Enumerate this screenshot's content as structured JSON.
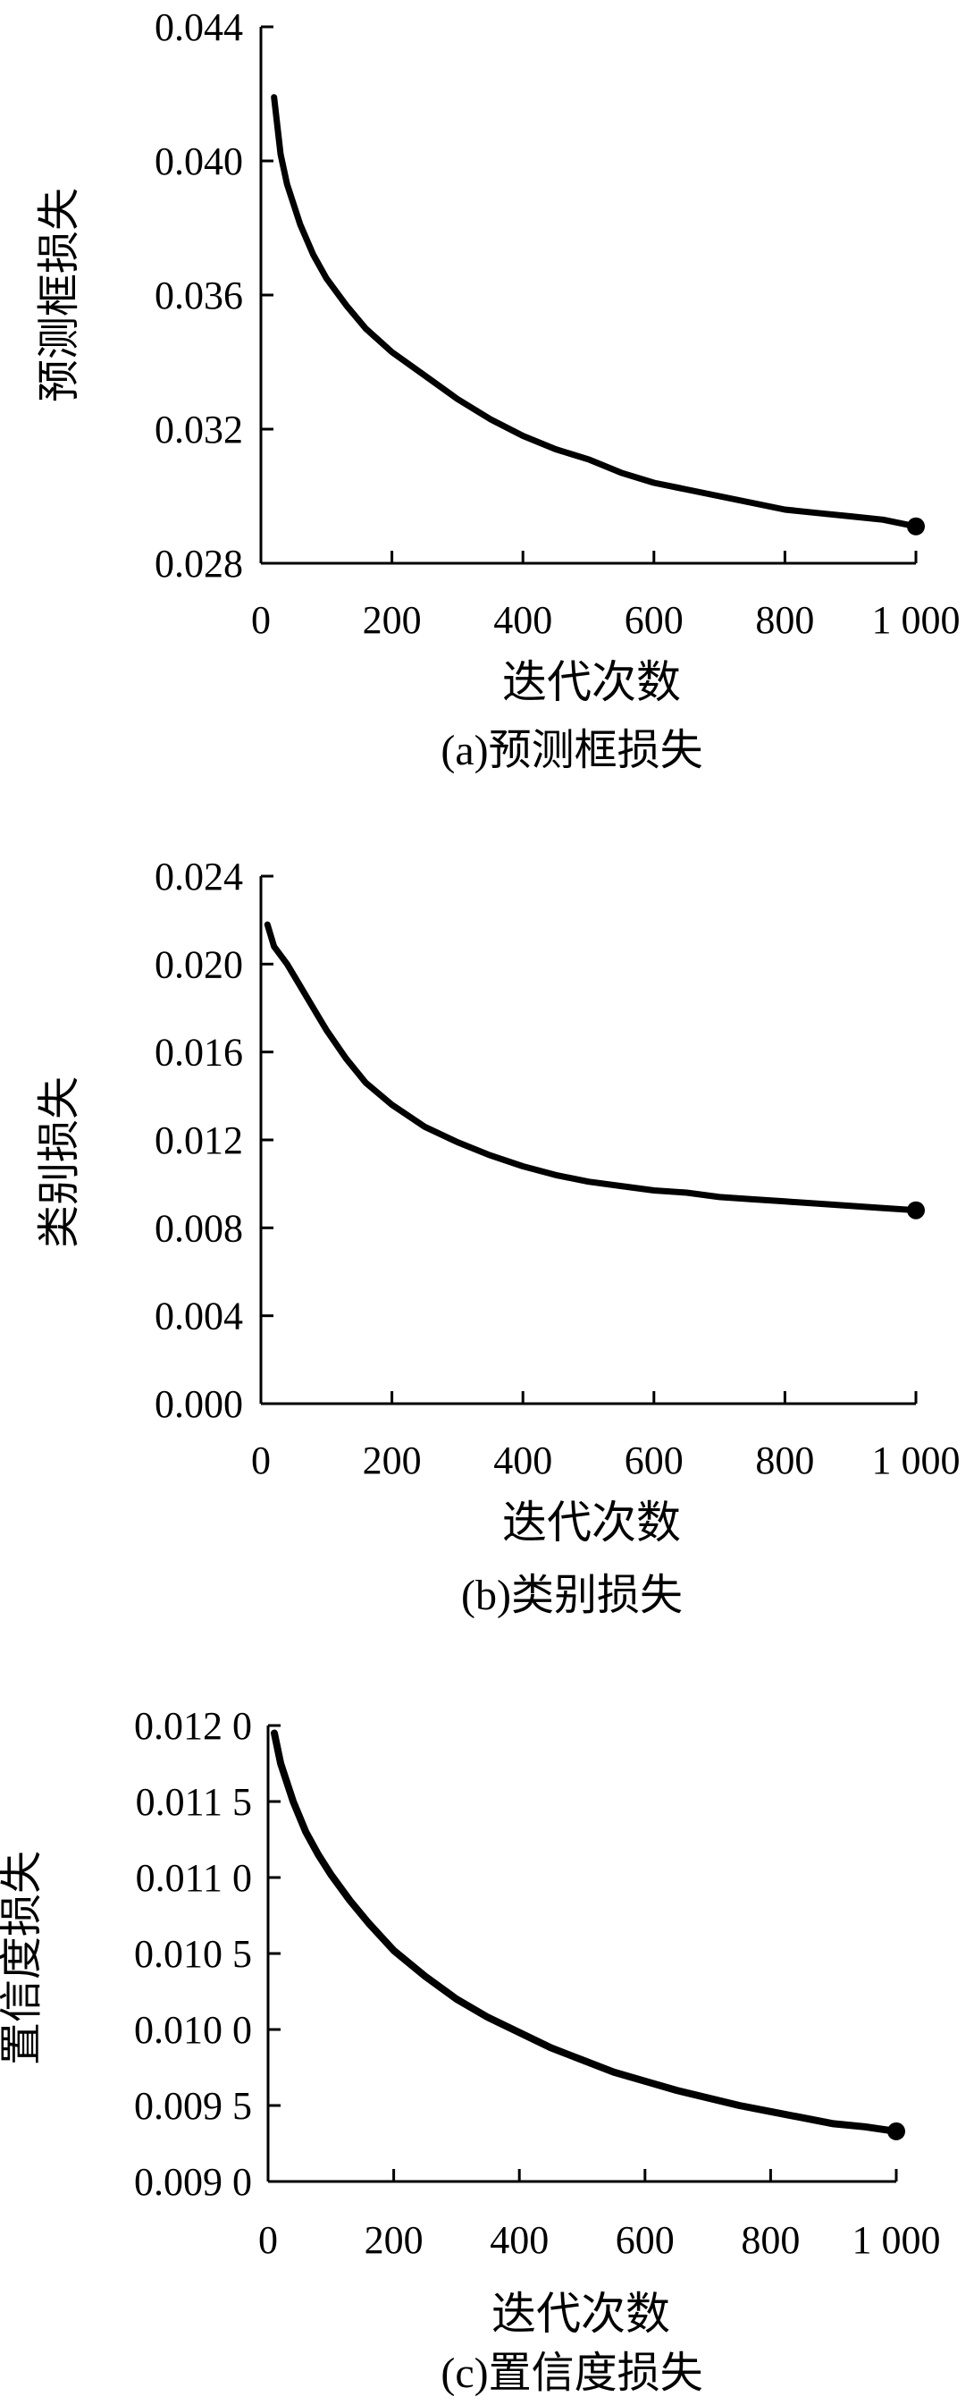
{
  "chart_data": [
    {
      "type": "line",
      "title": "",
      "caption": "(a)预测框损失",
      "xlabel": "迭代次数",
      "ylabel": "预测框损失",
      "xlim": [
        0,
        1000
      ],
      "ylim": [
        0.028,
        0.044
      ],
      "x_ticks": [
        "0",
        "200",
        "400",
        "600",
        "800",
        "1 000"
      ],
      "y_ticks": [
        "0.028",
        "0.032",
        "0.036",
        "0.040",
        "0.044"
      ],
      "grid": false,
      "series": [
        {
          "x": [
            20,
            30,
            40,
            60,
            80,
            100,
            130,
            160,
            200,
            250,
            300,
            350,
            400,
            450,
            500,
            550,
            600,
            650,
            700,
            750,
            800,
            850,
            900,
            950,
            1000
          ],
          "values": [
            0.0419,
            0.0402,
            0.0393,
            0.0381,
            0.0372,
            0.0365,
            0.0357,
            0.035,
            0.0343,
            0.0336,
            0.0329,
            0.0323,
            0.0318,
            0.0314,
            0.0311,
            0.0307,
            0.0304,
            0.0302,
            0.03,
            0.0298,
            0.0296,
            0.0295,
            0.0294,
            0.0293,
            0.0291
          ]
        }
      ]
    },
    {
      "type": "line",
      "title": "",
      "caption": "(b)类别损失",
      "xlabel": "迭代次数",
      "ylabel": "类别损失",
      "xlim": [
        0,
        1000
      ],
      "ylim": [
        0.0,
        0.024
      ],
      "x_ticks": [
        "0",
        "200",
        "400",
        "600",
        "800",
        "1 000"
      ],
      "y_ticks": [
        "0.000",
        "0.004",
        "0.008",
        "0.012",
        "0.016",
        "0.020",
        "0.024"
      ],
      "grid": false,
      "series": [
        {
          "x": [
            10,
            20,
            40,
            60,
            80,
            100,
            130,
            160,
            200,
            250,
            300,
            350,
            400,
            450,
            500,
            550,
            600,
            650,
            700,
            750,
            800,
            850,
            900,
            950,
            1000
          ],
          "values": [
            0.0218,
            0.0208,
            0.02,
            0.019,
            0.018,
            0.017,
            0.0157,
            0.0146,
            0.0136,
            0.0126,
            0.0119,
            0.0113,
            0.0108,
            0.0104,
            0.0101,
            0.0099,
            0.0097,
            0.0096,
            0.0094,
            0.0093,
            0.0092,
            0.0091,
            0.009,
            0.0089,
            0.0088
          ]
        }
      ]
    },
    {
      "type": "line",
      "title": "",
      "caption": "(c)置信度损失",
      "xlabel": "迭代次数",
      "ylabel": "置信度损失",
      "xlim": [
        0,
        1000
      ],
      "ylim": [
        0.009,
        0.012
      ],
      "x_ticks": [
        "0",
        "200",
        "400",
        "600",
        "800",
        "1 000"
      ],
      "y_ticks": [
        "0.009 0",
        "0.009 5",
        "0.010 0",
        "0.010 5",
        "0.011 0",
        "0.011 5",
        "0.012 0"
      ],
      "grid": false,
      "series": [
        {
          "x": [
            10,
            20,
            40,
            60,
            80,
            100,
            130,
            160,
            200,
            250,
            300,
            350,
            400,
            450,
            500,
            550,
            600,
            650,
            700,
            750,
            800,
            850,
            900,
            950,
            1000
          ],
          "values": [
            0.01195,
            0.01175,
            0.0115,
            0.0113,
            0.01115,
            0.01102,
            0.01085,
            0.0107,
            0.01052,
            0.01035,
            0.0102,
            0.01008,
            0.00998,
            0.00988,
            0.0098,
            0.00972,
            0.00966,
            0.0096,
            0.00955,
            0.0095,
            0.00946,
            0.00942,
            0.00938,
            0.00936,
            0.00933
          ]
        }
      ]
    }
  ]
}
